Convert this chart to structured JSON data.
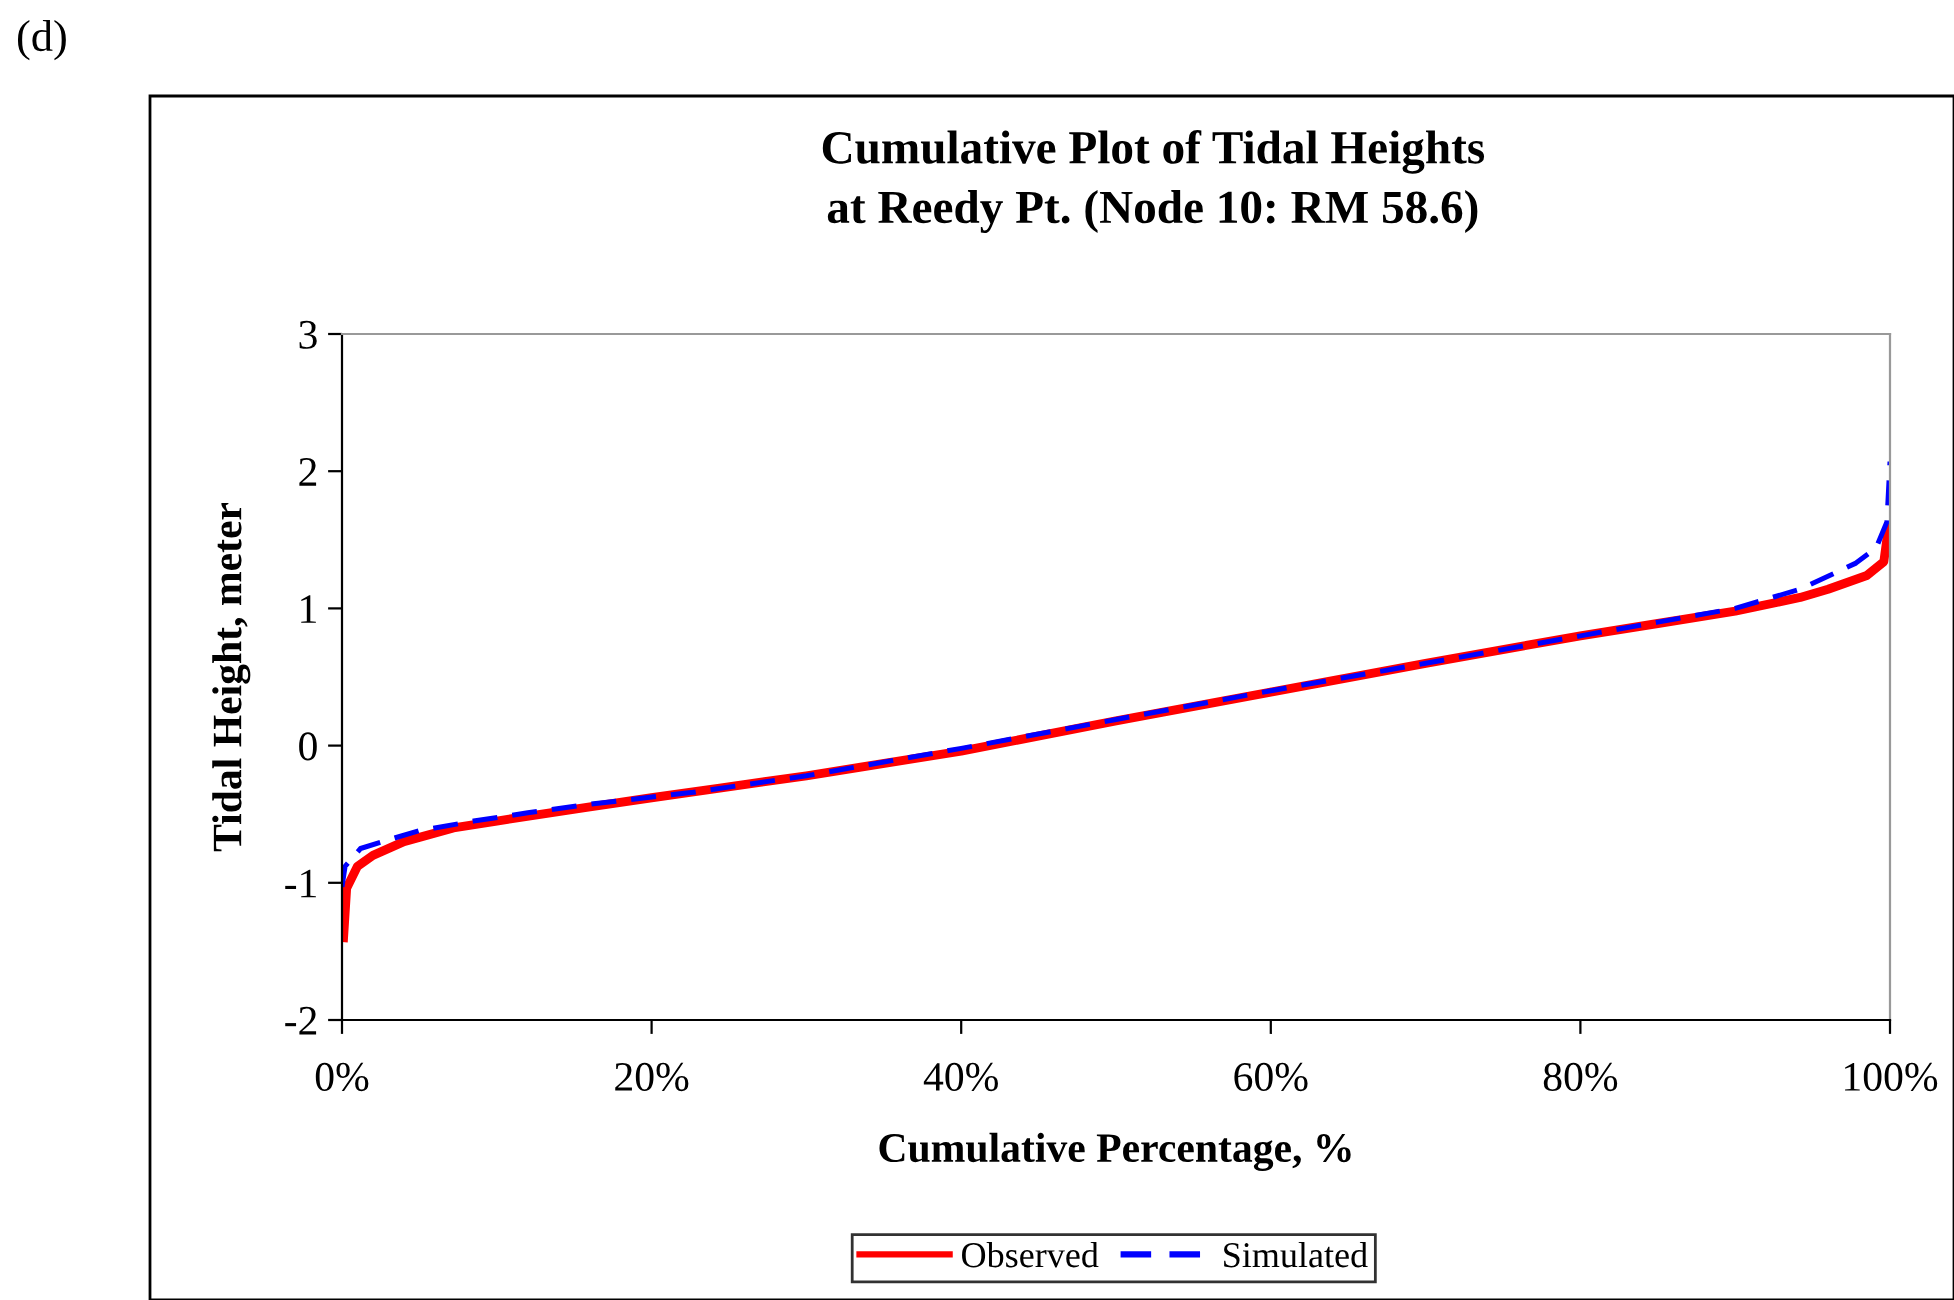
{
  "chart_data": {
    "type": "line",
    "title": "Cumulative Plot of Tidal Heights\nat Reedy Pt. (Node 10: RM 58.6)",
    "xlabel": "Cumulative Percentage, %",
    "ylabel": "Tidal Height, meter",
    "annotations": [
      "(d)"
    ],
    "xlim": [
      0,
      100
    ],
    "xticks": [
      {
        "value": 0,
        "label": "0%"
      },
      {
        "value": 20,
        "label": "20%"
      },
      {
        "value": 40,
        "label": "40%"
      },
      {
        "value": 60,
        "label": "60%"
      },
      {
        "value": 80,
        "label": "80%"
      },
      {
        "value": 100,
        "label": "100%"
      }
    ],
    "ylim": [
      -2,
      3
    ],
    "yticks": [
      -2,
      -1,
      0,
      1,
      2,
      3
    ],
    "grid": false,
    "legend": "bottom",
    "marker": "none",
    "series": [
      {
        "name": "Observed",
        "color": "#ff0000",
        "line_style": "solid",
        "x": [
          0.1,
          0.3,
          1,
          2,
          4,
          7.2,
          10,
          15.8,
          20,
          24.4,
          30,
          40,
          50,
          60,
          70,
          80,
          85,
          90,
          94.2,
          96,
          98.5,
          99.6,
          99.9,
          100
        ],
        "values": [
          -1.4,
          -1.04,
          -0.88,
          -0.8,
          -0.7,
          -0.6,
          -0.55,
          -0.45,
          -0.38,
          -0.31,
          -0.22,
          -0.04,
          0.18,
          0.39,
          0.6,
          0.8,
          0.89,
          0.98,
          1.08,
          1.14,
          1.24,
          1.34,
          1.59,
          1.6
        ]
      },
      {
        "name": "Simulated",
        "color": "#0000ff",
        "line_style": "dashed",
        "x": [
          0,
          0.2,
          1.2,
          2.9,
          5,
          8.5,
          12,
          15.8,
          22.7,
          30,
          40,
          50,
          60,
          70,
          80,
          85,
          90,
          94.2,
          97.8,
          99.1,
          99.8,
          100
        ],
        "values": [
          -1.03,
          -0.88,
          -0.75,
          -0.69,
          -0.62,
          -0.55,
          -0.49,
          -0.43,
          -0.34,
          -0.22,
          -0.02,
          0.19,
          0.4,
          0.6,
          0.8,
          0.9,
          1.0,
          1.14,
          1.33,
          1.44,
          1.63,
          2.07
        ]
      }
    ]
  }
}
